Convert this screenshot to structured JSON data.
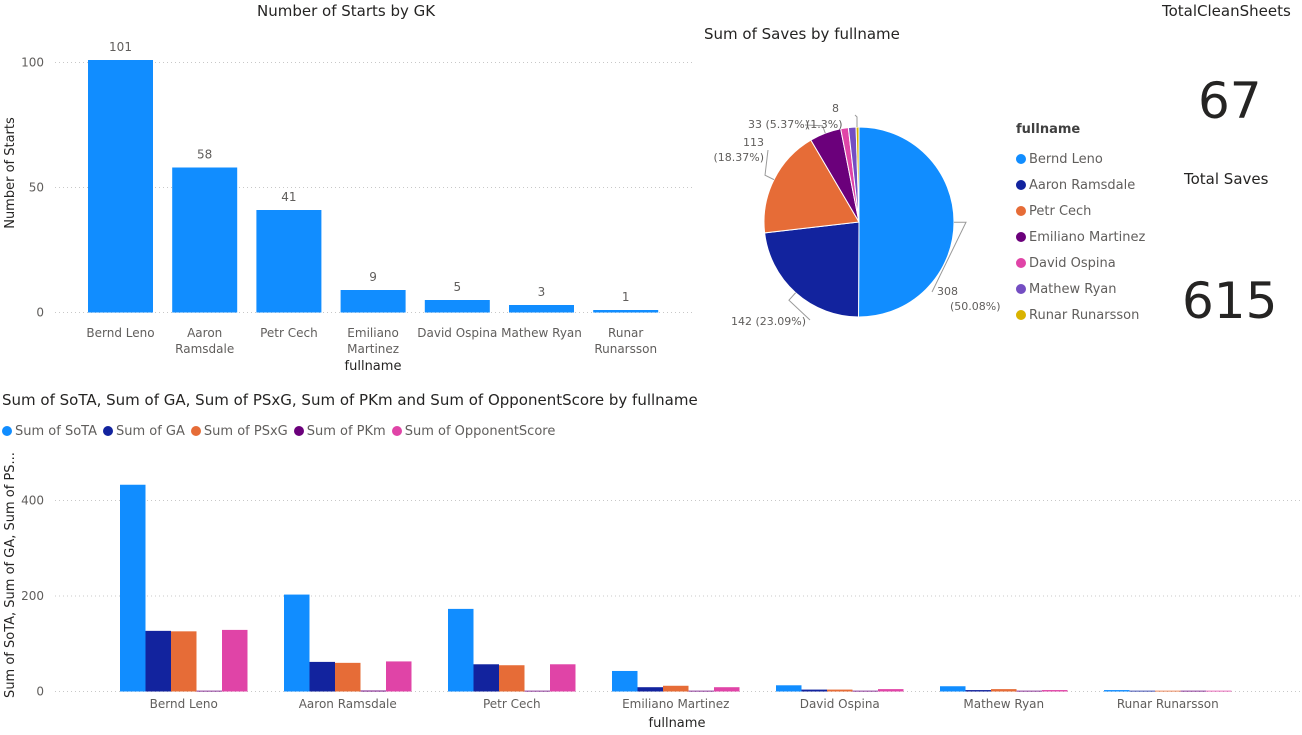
{
  "colors": {
    "sota": "#118DFF",
    "ga": "#12239E",
    "psxg": "#E66C37",
    "pkm": "#6B007B",
    "opponent": "#E044A7",
    "mathew": "#744EC2",
    "runar": "#D9B300"
  },
  "chart_data": [
    {
      "type": "bar",
      "title": "Number of Starts by GK",
      "xlabel": "fullname",
      "ylabel": "Number of Starts",
      "categories": [
        "Bernd Leno",
        "Aaron Ramsdale",
        "Petr Cech",
        "Emiliano Martinez",
        "David Ospina",
        "Mathew Ryan",
        "Runar Runarsson"
      ],
      "category_lines": [
        [
          "Bernd Leno"
        ],
        [
          "Aaron",
          "Ramsdale"
        ],
        [
          "Petr Cech"
        ],
        [
          "Emiliano",
          "Martinez"
        ],
        [
          "David Ospina"
        ],
        [
          "Mathew Ryan"
        ],
        [
          "Runar",
          "Runarsson"
        ]
      ],
      "values": [
        101,
        58,
        41,
        9,
        5,
        3,
        1
      ],
      "ylim": [
        0,
        110
      ],
      "yticks": [
        0,
        50,
        100
      ],
      "grid": true
    },
    {
      "type": "pie",
      "title": "Sum of Saves by fullname",
      "legend_title": "fullname",
      "legend_position": "right",
      "labels": [
        "Bernd Leno",
        "Aaron Ramsdale",
        "Petr Cech",
        "Emiliano Martinez",
        "David Ospina",
        "Mathew Ryan",
        "Runar Runarsson"
      ],
      "values": [
        308,
        142,
        113,
        33,
        8,
        8,
        3
      ],
      "data_labels": [
        [
          "308",
          "(50.08%)"
        ],
        [
          "142 (23.09%)"
        ],
        [
          "113",
          "(18.37%)"
        ],
        [
          "33 (5.37%)"
        ],
        [
          "8"
        ],
        [
          "(1.3%)"
        ],
        []
      ]
    },
    {
      "type": "bar",
      "title": "Sum of SoTA, Sum of GA, Sum of PSxG, Sum of PKm and Sum of OpponentScore by fullname",
      "xlabel": "fullname",
      "ylabel": "Sum of SoTA, Sum of GA, Sum of PS...",
      "legend_position": "top-left",
      "categories": [
        "Bernd Leno",
        "Aaron Ramsdale",
        "Petr Cech",
        "Emiliano Martinez",
        "David Ospina",
        "Mathew Ryan",
        "Runar Runarsson"
      ],
      "series": [
        {
          "name": "Sum of SoTA",
          "values": [
            433,
            203,
            173,
            43,
            13,
            11,
            3
          ]
        },
        {
          "name": "Sum of GA",
          "values": [
            127,
            62,
            57,
            9,
            4,
            3,
            0
          ]
        },
        {
          "name": "Sum of PSxG",
          "values": [
            126,
            60,
            55,
            12,
            4,
            5,
            1
          ]
        },
        {
          "name": "Sum of PKm",
          "values": [
            0,
            2,
            0,
            0,
            0,
            0,
            0
          ]
        },
        {
          "name": "Sum of OpponentScore",
          "values": [
            129,
            63,
            57,
            9,
            5,
            3,
            1
          ]
        }
      ],
      "ylim": [
        0,
        460
      ],
      "yticks": [
        0,
        200,
        400
      ],
      "grid": true
    }
  ],
  "cards": {
    "clean_sheets_label": "TotalCleanSheets",
    "clean_sheets_value": "67",
    "saves_label": "Total Saves",
    "saves_value": "615"
  }
}
